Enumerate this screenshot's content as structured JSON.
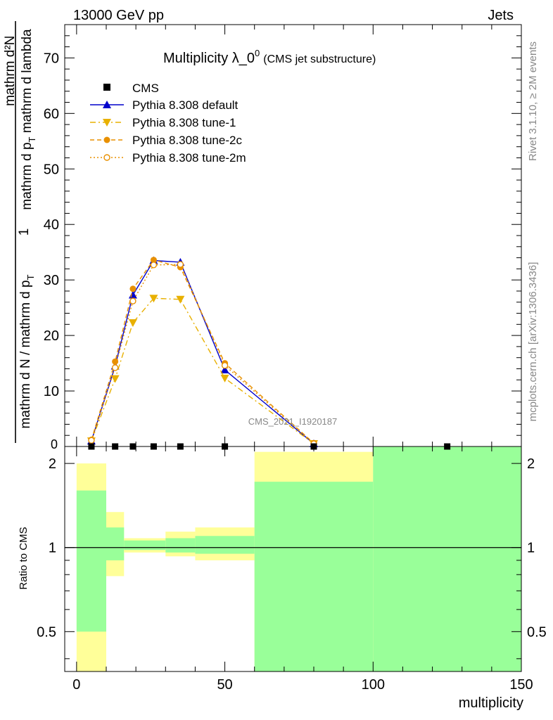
{
  "header": {
    "left": "13000 GeV pp",
    "right": "Jets"
  },
  "side": {
    "rivet": "Rivet 3.1.10, ≥ 2M events",
    "mcplots": "mcplots.cern.ch [arXiv:1306.3436]"
  },
  "watermark": "CMS_2021_I1920187",
  "chart_data": {
    "type": "line",
    "title": "Multiplicity λ_0",
    "title_sup": "0",
    "subtitle": "(CMS jet substructure)",
    "xlabel": "multiplicity",
    "ylabel": {
      "num": "mathrm d²N",
      "num_rest": "mathrm d p",
      "num_sub": "T",
      "num_tail": " mathrm d lambda",
      "one": "1",
      "den": "mathrm d N / mathrm d p",
      "den_sub": "T"
    },
    "ratio_ylabel": "Ratio to CMS",
    "xlim": [
      -4,
      150
    ],
    "ylim": [
      0,
      76
    ],
    "x_ticks": [
      0,
      50,
      100,
      150
    ],
    "y_ticks": [
      10,
      20,
      30,
      40,
      50,
      60,
      70
    ],
    "y_tick_labels": [
      "10",
      "20",
      "30",
      "40",
      "50",
      "60",
      "70"
    ],
    "y_zero_label": "0",
    "ratio_ylim": [
      0.36,
      2.3
    ],
    "ratio_ticks": [
      0.5,
      1,
      2
    ],
    "ratio_tick_labels": [
      "0.5",
      "1",
      "2"
    ],
    "legend_position": "top-left",
    "cms": {
      "name": "CMS",
      "x": [
        5,
        13,
        19,
        26,
        35,
        50,
        80,
        125
      ],
      "y": [
        0,
        0,
        0,
        0,
        0,
        0,
        0,
        0
      ]
    },
    "series": [
      {
        "name": "Pythia 8.308 default",
        "color": "#0000cc",
        "style": "solid",
        "marker": "triangle-up",
        "x": [
          5,
          13,
          19,
          26,
          35,
          50,
          80
        ],
        "y": [
          1.0,
          14.5,
          27.3,
          33.5,
          33.2,
          13.8,
          0.5
        ]
      },
      {
        "name": "Pythia 8.308 tune-1",
        "color": "#e8b000",
        "style": "dashdot",
        "marker": "triangle-down",
        "x": [
          5,
          13,
          19,
          26,
          35,
          50,
          80
        ],
        "y": [
          1.0,
          12.2,
          22.3,
          26.7,
          26.5,
          12.3,
          0.5
        ]
      },
      {
        "name": "Pythia 8.308 tune-2c",
        "color": "#e89000",
        "style": "dashed",
        "marker": "circle",
        "x": [
          5,
          13,
          19,
          26,
          35,
          50,
          80
        ],
        "y": [
          1.2,
          15.3,
          28.4,
          33.6,
          32.3,
          15.0,
          0.6
        ]
      },
      {
        "name": "Pythia 8.308 tune-2m",
        "color": "#e89000",
        "style": "dotted",
        "marker": "circle-open",
        "x": [
          5,
          13,
          19,
          26,
          35,
          50,
          80
        ],
        "y": [
          1.1,
          14.2,
          26.2,
          32.7,
          32.8,
          14.6,
          0.5
        ]
      }
    ],
    "ratio_bands": [
      {
        "x0": 0,
        "x1": 10,
        "yellow": [
          0.36,
          2.0
        ],
        "green": [
          0.5,
          1.6
        ]
      },
      {
        "x0": 10,
        "x1": 16,
        "yellow": [
          0.79,
          1.34
        ],
        "green": [
          0.9,
          1.18
        ]
      },
      {
        "x0": 16,
        "x1": 30,
        "yellow": [
          0.96,
          1.08
        ],
        "green": [
          0.98,
          1.06
        ]
      },
      {
        "x0": 30,
        "x1": 40,
        "yellow": [
          0.93,
          1.14
        ],
        "green": [
          0.96,
          1.08
        ]
      },
      {
        "x0": 40,
        "x1": 60,
        "yellow": [
          0.9,
          1.18
        ],
        "green": [
          0.95,
          1.1
        ]
      },
      {
        "x0": 60,
        "x1": 100,
        "yellow": [
          0.36,
          2.2
        ],
        "green": [
          0.36,
          1.72
        ]
      },
      {
        "x0": 100,
        "x1": 150,
        "yellow": [
          0.36,
          2.3
        ],
        "green": [
          0.36,
          2.3
        ]
      }
    ]
  }
}
